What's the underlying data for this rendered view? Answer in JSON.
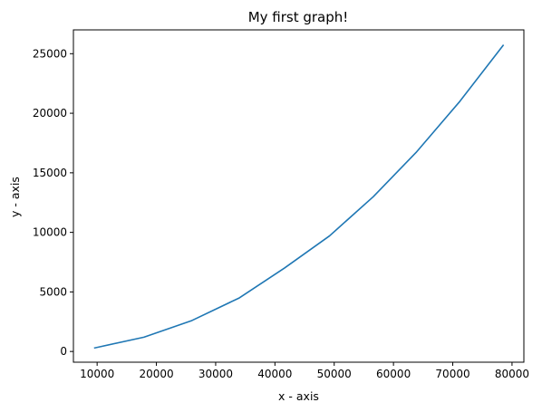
{
  "chart_data": {
    "type": "line",
    "title": "My first graph!",
    "xlabel": "x - axis",
    "ylabel": "y - axis",
    "xlim": [
      6000,
      82000
    ],
    "ylim": [
      -900,
      27000
    ],
    "xticks": [
      10000,
      20000,
      30000,
      40000,
      50000,
      60000,
      70000,
      80000
    ],
    "xtick_labels": [
      "10000",
      "20000",
      "30000",
      "40000",
      "50000",
      "60000",
      "70000",
      "80000"
    ],
    "yticks": [
      0,
      5000,
      10000,
      15000,
      20000,
      25000
    ],
    "ytick_labels": [
      "0",
      "5000",
      "10000",
      "15000",
      "20000",
      "25000"
    ],
    "grid": false,
    "series": [
      {
        "color": "#1f77b4",
        "x": [
          9600,
          17900,
          26000,
          34000,
          41600,
          49200,
          56600,
          63800,
          71200,
          78500
        ],
        "y": [
          300,
          1200,
          2600,
          4500,
          7000,
          9700,
          13000,
          16700,
          21000,
          25700
        ]
      }
    ]
  }
}
